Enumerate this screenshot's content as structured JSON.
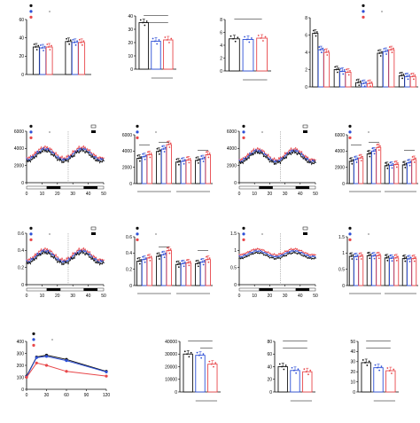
{
  "colors": {
    "sham": "#111111",
    "wt": "#2d4fd6",
    "fat1": "#e8474a",
    "light": "#ffffff",
    "dark": "#000000"
  },
  "chart_data": [
    {
      "id": "A",
      "letter": "A",
      "type": "bar",
      "ylabel": "Body weight (g)",
      "ylim": [
        0,
        60
      ],
      "yticks": [
        0,
        20,
        40,
        60
      ],
      "categories": [
        "Before Operation",
        "7weeks After Operation"
      ],
      "series": [
        {
          "name": "Sham",
          "values": [
            30,
            36
          ]
        },
        {
          "name": "Wt",
          "values": [
            29,
            35
          ]
        },
        {
          "name": "Fat-1",
          "values": [
            30,
            35
          ]
        }
      ],
      "legend": {
        "items": [
          "Sham",
          "Wt",
          "Fat-1"
        ],
        "note": "BAT transplant"
      },
      "annotations": [
        {
          "text": "ns",
          "at": 0
        },
        {
          "text": "ns",
          "at": 1
        },
        {
          "text": "*",
          "at": 1
        }
      ]
    },
    {
      "id": "B",
      "letter": "B",
      "type": "bar",
      "ylabel": "% of body weight changes at 7 weeks",
      "ylim": [
        0,
        40
      ],
      "yticks": [
        0,
        10,
        20,
        30,
        40
      ],
      "categories": [
        "Sham",
        "Wt",
        "Fat-1"
      ],
      "values": [
        35,
        21,
        22
      ],
      "xnote": "BAT transplant",
      "annotations": [
        {
          "text": "p = 0.07"
        },
        {
          "text": "*"
        }
      ]
    },
    {
      "id": "C",
      "letter": "C",
      "type": "bar",
      "ylabel": "Food intake (g/day)",
      "ylim": [
        0,
        8
      ],
      "yticks": [
        0,
        2,
        4,
        6,
        8
      ],
      "categories": [
        "Sham",
        "Wt",
        "Fat-1"
      ],
      "values": [
        5.0,
        4.9,
        5.1
      ],
      "xnote": "BAT transplant",
      "annotations": [
        {
          "text": "ns"
        }
      ]
    },
    {
      "id": "D",
      "letter": "D",
      "type": "bar",
      "ylabel": "Tissue weight relative to body weight",
      "ylim": [
        0,
        8
      ],
      "yticks": [
        0,
        2,
        4,
        6,
        8
      ],
      "categories": [
        "pgWAT",
        "scWAT",
        "BAT",
        "Liver",
        "Quadriceps muscle"
      ],
      "series": [
        {
          "name": "Sham",
          "values": [
            6.2,
            2.0,
            0.5,
            3.9,
            1.3
          ]
        },
        {
          "name": "Wt",
          "values": [
            4.3,
            1.8,
            0.4,
            4.1,
            1.2
          ]
        },
        {
          "name": "Fat-1",
          "values": [
            4.0,
            1.7,
            0.4,
            4.3,
            1.2
          ]
        }
      ],
      "legend": {
        "items": [
          "Sham",
          "Wt",
          "Fat-1"
        ],
        "note": "BAT transplant"
      },
      "annotations": [
        {
          "text": "**"
        },
        {
          "text": "*"
        },
        {
          "text": "ns"
        },
        {
          "text": "ns"
        },
        {
          "text": "ns"
        },
        {
          "text": "ns"
        }
      ]
    },
    {
      "id": "E",
      "letter": "E",
      "type": "line",
      "ylabel": "VO2 (mL/kg/hr)",
      "xlabel": "Time (hr)",
      "ylim": [
        0,
        6000
      ],
      "yticks": [
        0,
        2000,
        4000,
        6000
      ],
      "xlim": [
        0,
        50
      ],
      "xticks": [
        0,
        10,
        20,
        30,
        40,
        50
      ],
      "base": 3300,
      "amp": 900,
      "marker": 27,
      "fedLabel": "Fed",
      "fastedLabel": "Fasted",
      "legend": {
        "items": [
          "Sham",
          "Wt",
          "Fat-1"
        ],
        "note": "BAT transplant",
        "light": "Light",
        "dark": "Dark"
      },
      "darkBars": [
        [
          13,
          22
        ],
        [
          37,
          46
        ]
      ]
    },
    {
      "id": "F",
      "letter": "F",
      "type": "bar",
      "ylabel": "Median VO2 (mL/kg/hr)",
      "ylim": [
        0,
        6000
      ],
      "yticks": [
        0,
        2000,
        4000,
        6000
      ],
      "categories": [
        "Light",
        "Dark",
        "Light",
        "Dark"
      ],
      "groups": [
        "Fed",
        "Fasted"
      ],
      "series": [
        {
          "name": "Sham",
          "values": [
            3100,
            3950,
            2650,
            2850
          ]
        },
        {
          "name": "Wt",
          "values": [
            3300,
            4250,
            2750,
            3050
          ]
        },
        {
          "name": "Fat-1",
          "values": [
            3550,
            4800,
            2900,
            3550
          ]
        }
      ],
      "legend": {
        "items": [
          "Sham",
          "Wt",
          "Fat-1"
        ],
        "note": "BAT transplant"
      },
      "annotations": [
        {
          "text": "p = 0.06"
        },
        {
          "text": "**"
        },
        {
          "text": "*"
        }
      ]
    },
    {
      "id": "G",
      "letter": "G",
      "type": "line",
      "ylabel": "VCO2 (mL/kg/hr)",
      "xlabel": "Time (hr)",
      "ylim": [
        0,
        6000
      ],
      "yticks": [
        0,
        2000,
        4000,
        6000
      ],
      "xlim": [
        0,
        50
      ],
      "xticks": [
        0,
        10,
        20,
        30,
        40,
        50
      ],
      "base": 3100,
      "amp": 900,
      "marker": 27,
      "fedLabel": "Fed",
      "fastedLabel": "Fasted",
      "legend": {
        "items": [
          "Sham",
          "Wt",
          "Fat-1"
        ],
        "note": "BAT transplant",
        "light": "Light",
        "dark": "Dark"
      },
      "darkBars": [
        [
          13,
          22
        ],
        [
          37,
          46
        ]
      ]
    },
    {
      "id": "H",
      "letter": "H",
      "type": "bar",
      "ylabel": "Median VCO2 (mL/kg/hr)",
      "ylim": [
        0,
        6000
      ],
      "yticks": [
        0,
        2000,
        4000,
        6000
      ],
      "categories": [
        "Light",
        "Dark",
        "Light",
        "Dark"
      ],
      "groups": [
        "Fed",
        "Fasted"
      ],
      "series": [
        {
          "name": "Sham",
          "values": [
            2750,
            3650,
            2200,
            2300
          ]
        },
        {
          "name": "Wt",
          "values": [
            2950,
            4000,
            2250,
            2550
          ]
        },
        {
          "name": "Fat-1",
          "values": [
            3150,
            4450,
            2350,
            2950
          ]
        }
      ],
      "legend": {
        "items": [
          "Sham",
          "Wt",
          "Fat-1"
        ],
        "note": "BAT transplant"
      },
      "annotations": [
        {
          "text": "p = 0.06"
        },
        {
          "text": "**"
        },
        {
          "text": "*"
        }
      ]
    },
    {
      "id": "I",
      "letter": "I",
      "type": "line",
      "ylabel": "Heat (kcal/hr)",
      "xlabel": "Time (hr)",
      "ylim": [
        0,
        0.6
      ],
      "yticks": [
        0,
        0.2,
        0.4,
        0.6
      ],
      "xlim": [
        0,
        50
      ],
      "xticks": [
        0,
        10,
        20,
        30,
        40,
        50
      ],
      "base": 0.33,
      "amp": 0.09,
      "marker": 27,
      "fedLabel": "Fed",
      "fastedLabel": "Fasted",
      "legend": {
        "items": [
          "Sham",
          "Wt",
          "Fat-1"
        ],
        "note": "BAT transplant",
        "light": "Light",
        "dark": "Dark"
      },
      "darkBars": [
        [
          13,
          22
        ],
        [
          37,
          46
        ]
      ]
    },
    {
      "id": "J",
      "letter": "J",
      "type": "bar",
      "ylabel": "Median Heat (kcal/hr)",
      "ylim": [
        0,
        0.6
      ],
      "yticks": [
        0,
        0.2,
        0.4,
        0.6
      ],
      "categories": [
        "Light",
        "Dark",
        "Light",
        "Dark"
      ],
      "groups": [
        "Fed",
        "Fasted"
      ],
      "series": [
        {
          "name": "Sham",
          "values": [
            0.3,
            0.36,
            0.26,
            0.27
          ]
        },
        {
          "name": "Wt",
          "values": [
            0.32,
            0.38,
            0.27,
            0.29
          ]
        },
        {
          "name": "Fat-1",
          "values": [
            0.34,
            0.43,
            0.28,
            0.32
          ]
        }
      ],
      "legend": {
        "items": [
          "Sham",
          "Wt",
          "Fat-1"
        ],
        "note": "BAT transplant"
      },
      "annotations": [
        {
          "text": "*"
        },
        {
          "text": "p = 0.14"
        }
      ]
    },
    {
      "id": "K",
      "letter": "K",
      "type": "line",
      "ylabel": "RER",
      "xlabel": "Time (hr)",
      "ylim": [
        0,
        1.5
      ],
      "yticks": [
        0,
        0.5,
        1.0,
        1.5
      ],
      "xlim": [
        0,
        50
      ],
      "xticks": [
        0,
        10,
        20,
        30,
        40,
        50
      ],
      "base": 0.9,
      "amp": 0.12,
      "marker": 27,
      "fedLabel": "Fed",
      "fastedLabel": "Fasted",
      "legend": {
        "items": [
          "Sham",
          "Wt",
          "Fat-1"
        ],
        "note": "BAT transplant",
        "light": "Light",
        "dark": "Dark"
      },
      "darkBars": [
        [
          13,
          22
        ],
        [
          37,
          46
        ]
      ]
    },
    {
      "id": "L",
      "letter": "L",
      "type": "bar",
      "ylabel": "Median RER",
      "ylim": [
        0,
        1.5
      ],
      "yticks": [
        0,
        0.5,
        1.0,
        1.5
      ],
      "categories": [
        "Light",
        "Dark",
        "Light",
        "Dark"
      ],
      "groups": [
        "Fed",
        "Fasted"
      ],
      "series": [
        {
          "name": "Sham",
          "values": [
            0.9,
            0.92,
            0.85,
            0.83
          ]
        },
        {
          "name": "Wt",
          "values": [
            0.89,
            0.91,
            0.84,
            0.82
          ]
        },
        {
          "name": "Fat-1",
          "values": [
            0.9,
            0.92,
            0.85,
            0.83
          ]
        }
      ],
      "legend": {
        "items": [
          "Sham",
          "Wt",
          "Fat-1"
        ],
        "note": "BAT transplant"
      },
      "annotations": []
    },
    {
      "id": "M",
      "letter": "M",
      "type": "line",
      "title": "IPGTT",
      "ylabel": "Glucose level (mg/dL)",
      "xlabel": "Time (min)",
      "ylim": [
        0,
        400
      ],
      "yticks": [
        0,
        100,
        200,
        300,
        400
      ],
      "xlim": [
        0,
        120
      ],
      "xticks": [
        0,
        30,
        60,
        90,
        120
      ],
      "x": [
        0,
        15,
        30,
        60,
        120
      ],
      "series": [
        {
          "name": "Sham",
          "values": [
            110,
            270,
            285,
            250,
            150
          ]
        },
        {
          "name": "Wt",
          "values": [
            105,
            265,
            275,
            240,
            145
          ]
        },
        {
          "name": "Fat-1",
          "values": [
            100,
            220,
            200,
            150,
            110
          ]
        }
      ],
      "legend": {
        "items": [
          "Sham",
          "Wt",
          "Fat-1"
        ],
        "note": "BAT transplant"
      },
      "annotations": [
        {
          "text": "**",
          "x": 30
        },
        {
          "text": "*",
          "x": 60
        },
        {
          "text": "† † †",
          "x": 120
        },
        {
          "text": "***",
          "x": 120
        }
      ]
    },
    {
      "id": "N",
      "letter": "N",
      "type": "bar",
      "ylabel": "GTT AUC (mg/dL × 120 min)",
      "ylim": [
        0,
        40000
      ],
      "yticks": [
        0,
        10000,
        20000,
        30000,
        40000
      ],
      "categories": [
        "Sham",
        "Wt",
        "Fat-1"
      ],
      "values": [
        30000,
        29000,
        22000
      ],
      "xnote": "BAT transplant",
      "annotations": [
        {
          "text": "***"
        },
        {
          "text": "***"
        }
      ]
    },
    {
      "id": "O",
      "letter": "O",
      "type": "bar",
      "ylabel": "Circulating Insulin (µU/mL)",
      "ylim": [
        0,
        80
      ],
      "yticks": [
        0,
        20,
        40,
        60,
        80
      ],
      "categories": [
        "Sham",
        "Wt",
        "Fat-1"
      ],
      "values": [
        40,
        34,
        32
      ],
      "xnote": "BAT transplant",
      "annotations": [
        {
          "text": "p = 0.82"
        },
        {
          "text": "p = 0.97"
        }
      ]
    },
    {
      "id": "P",
      "letter": "P",
      "type": "bar",
      "ylabel": "HOME-IR (mg/mL × µU/mL)",
      "ylim": [
        0,
        50
      ],
      "yticks": [
        0,
        10,
        20,
        30,
        40,
        50
      ],
      "categories": [
        "Sham",
        "Wt",
        "Fat-1"
      ],
      "values": [
        29,
        24,
        21
      ],
      "xnote": "BAT transplant",
      "annotations": [
        {
          "text": "p = 0.39"
        },
        {
          "text": "p = 0.84"
        }
      ]
    }
  ]
}
